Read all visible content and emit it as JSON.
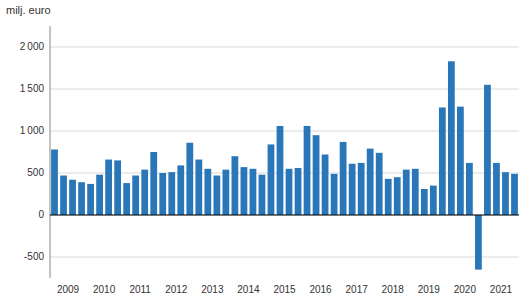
{
  "chart_data": {
    "type": "bar",
    "ylabel": "milj. euro",
    "categories": [
      "2009",
      null,
      null,
      null,
      "2010",
      null,
      null,
      null,
      "2011",
      null,
      null,
      null,
      "2012",
      null,
      null,
      null,
      "2013",
      null,
      null,
      null,
      "2014",
      null,
      null,
      null,
      "2015",
      null,
      null,
      null,
      "2016",
      null,
      null,
      null,
      "2017",
      null,
      null,
      null,
      "2018",
      null,
      null,
      null,
      "2019",
      null,
      null,
      null,
      "2020",
      null,
      null,
      null,
      "2021",
      null,
      null,
      null
    ],
    "values": [
      780,
      470,
      420,
      390,
      370,
      480,
      660,
      650,
      380,
      470,
      540,
      750,
      500,
      510,
      590,
      860,
      660,
      550,
      470,
      540,
      700,
      570,
      550,
      480,
      840,
      1060,
      550,
      560,
      1060,
      950,
      720,
      490,
      870,
      610,
      620,
      790,
      740,
      430,
      450,
      540,
      550,
      310,
      350,
      1280,
      1830,
      1290,
      620,
      -650,
      1550,
      620,
      510,
      490
    ],
    "color": "#2976B8",
    "ylim": [
      -750,
      2250
    ],
    "yticks": [
      -500,
      0,
      500,
      {
        "value": 1000,
        "label": "1 000"
      },
      {
        "value": 1500,
        "label": "1 500"
      },
      {
        "value": 2000,
        "label": "2 000"
      }
    ],
    "grid": true
  }
}
